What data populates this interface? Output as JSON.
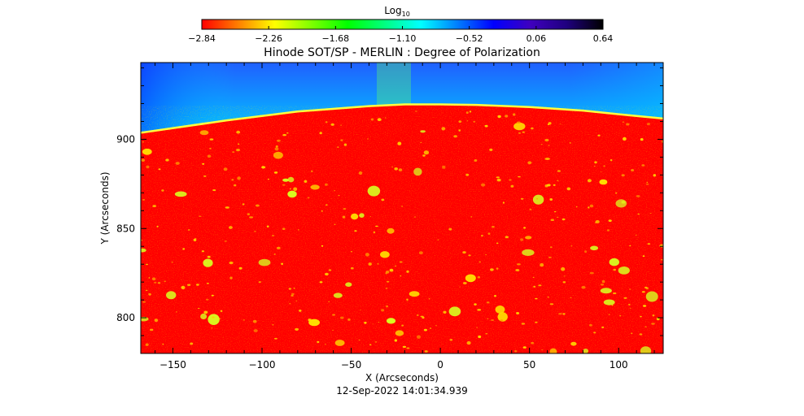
{
  "chart_data": {
    "type": "heatmap",
    "title": "Hinode SOT/SP - MERLIN : Degree of Polarization",
    "xlabel": "X (Arcseconds)",
    "ylabel": "Y (Arcseconds)",
    "timestamp": "12-Sep-2022 14:01:34.939",
    "xlim": [
      -168,
      125
    ],
    "ylim": [
      780,
      943
    ],
    "x_ticks": [
      -150,
      -100,
      -50,
      0,
      50,
      100
    ],
    "x_tick_labels": [
      "−150",
      "−100",
      "−50",
      "0",
      "50",
      "100"
    ],
    "y_ticks": [
      800,
      850,
      900
    ],
    "y_tick_labels": [
      "800",
      "850",
      "900"
    ],
    "colorbar": {
      "label_base": "Log",
      "label_sub": "10",
      "range": [
        -2.84,
        0.64
      ],
      "ticks": [
        -2.84,
        -2.26,
        -1.68,
        -1.1,
        -0.52,
        0.06,
        0.64
      ],
      "tick_labels": [
        "−2.84",
        "−2.26",
        "−1.68",
        "−1.10",
        "−0.52",
        "0.06",
        "0.64"
      ],
      "colors": [
        "#ff0000",
        "#ff7f00",
        "#ffff00",
        "#7fff00",
        "#00ff00",
        "#00ff7f",
        "#00ffff",
        "#007fff",
        "#0000ff",
        "#3f00bf",
        "#1f007f",
        "#000000"
      ]
    },
    "limb": {
      "description_points_x": [
        -168,
        -120,
        -80,
        -40,
        -20,
        0,
        20,
        50,
        80,
        110,
        125
      ],
      "description_points_y": [
        903,
        910,
        915,
        918,
        919,
        919,
        918.7,
        917.5,
        915.5,
        912.5,
        911
      ]
    },
    "regions": {
      "off_limb_value_range": [
        -1.2,
        0.0
      ],
      "disk_value_range": [
        -2.84,
        -2.0
      ]
    }
  }
}
